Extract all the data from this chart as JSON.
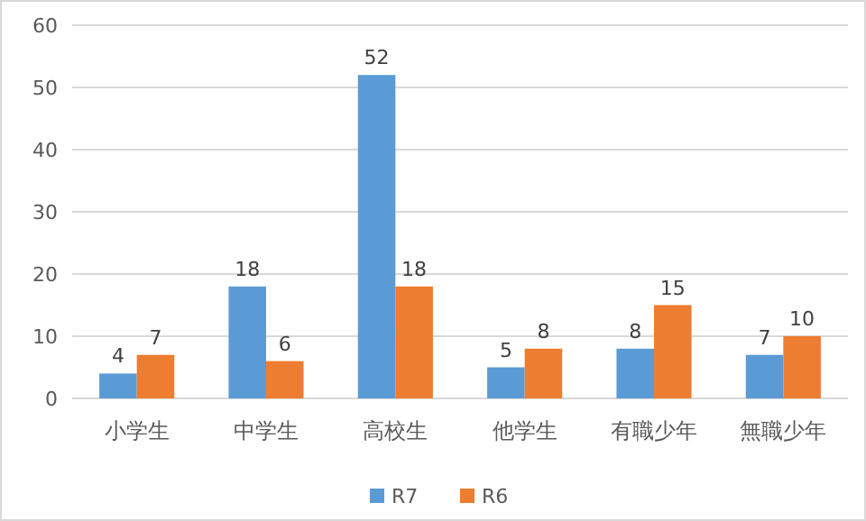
{
  "chart_data": {
    "type": "bar",
    "categories": [
      "小学生",
      "中学生",
      "高校生",
      "他学生",
      "有職少年",
      "無職少年"
    ],
    "series": [
      {
        "name": "R7",
        "color": "#5b9bd5",
        "values": [
          4,
          18,
          52,
          5,
          8,
          7
        ]
      },
      {
        "name": "R6",
        "color": "#ed7d31",
        "values": [
          7,
          6,
          18,
          8,
          15,
          10
        ]
      }
    ],
    "ylim": [
      0,
      60
    ],
    "yticks": [
      0,
      10,
      20,
      30,
      40,
      50,
      60
    ],
    "grid": "y",
    "legend": "bottom",
    "data_labels": true
  }
}
